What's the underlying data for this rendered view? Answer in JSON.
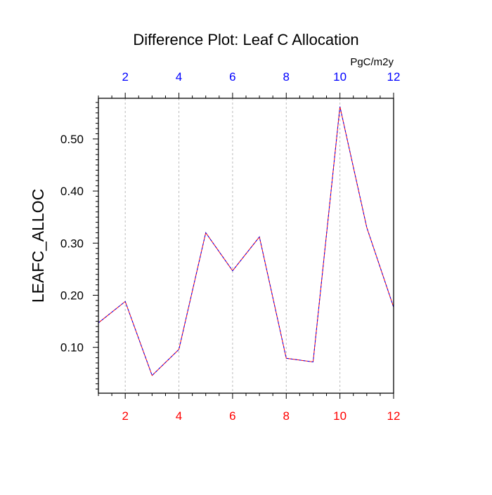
{
  "chart_data": {
    "type": "line",
    "title": "Difference Plot: Leaf C Allocation",
    "ylabel": "LEAFC_ALLOC",
    "units": "PgC/m2y",
    "x": [
      1,
      2,
      3,
      4,
      5,
      6,
      7,
      8,
      9,
      10,
      11,
      12
    ],
    "series": [
      {
        "name": "LEAFC_ALLOC",
        "values": [
          0.147,
          0.188,
          0.046,
          0.096,
          0.32,
          0.247,
          0.312,
          0.079,
          0.072,
          0.562,
          0.33,
          0.177
        ]
      }
    ],
    "xlim": [
      1,
      12
    ],
    "ylim": [
      0.012,
      0.578
    ],
    "xticks": [
      2,
      4,
      6,
      8,
      10,
      12
    ],
    "xtick_labels": [
      "2",
      "4",
      "6",
      "8",
      "10",
      "12"
    ],
    "top_xtick_labels": [
      "2",
      "4",
      "6",
      "8",
      "10",
      "12"
    ],
    "yticks": [
      0.1,
      0.2,
      0.3,
      0.4,
      0.5
    ],
    "ytick_labels": [
      "0.10",
      "0.20",
      "0.30",
      "0.40",
      "0.50"
    ],
    "grid": "vertical-dashed",
    "line_colors": [
      "#ff0000",
      "#0000ff"
    ],
    "bottom_tick_color": "#ff0000",
    "top_tick_color": "#0000ff"
  }
}
